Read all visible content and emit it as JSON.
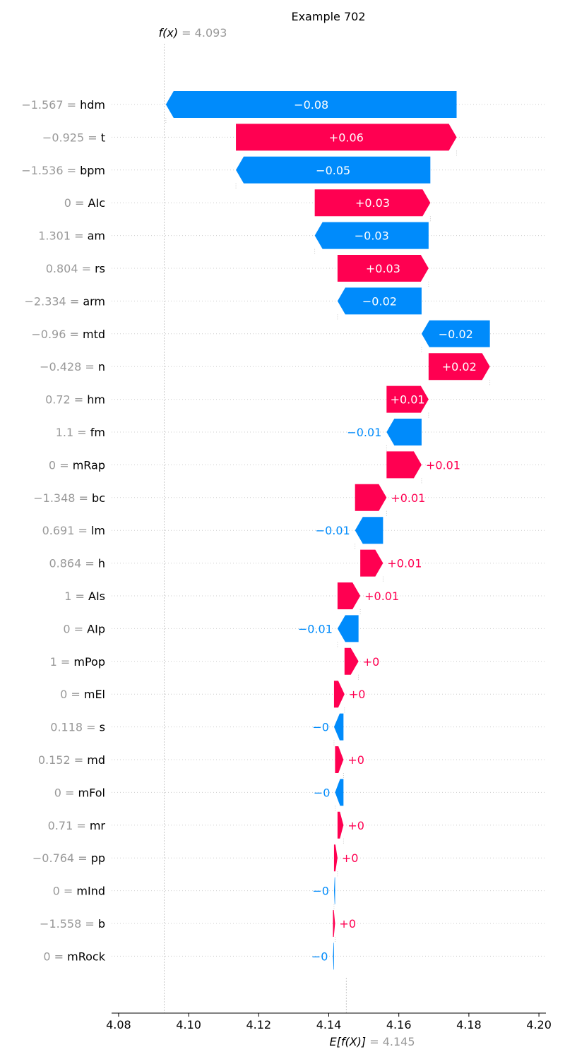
{
  "chart_data": {
    "type": "waterfall",
    "title": "Example 702",
    "fx_label": "f(x)",
    "fx_value": "4.093",
    "ex_label": "E[f(X)]",
    "ex_value": "4.145",
    "base_value": 4.145,
    "final_value": 4.093,
    "xlim": [
      4.078,
      4.202
    ],
    "x_ticks": [
      4.08,
      4.1,
      4.12,
      4.14,
      4.16,
      4.18,
      4.2
    ],
    "x_tick_labels": [
      "4.08",
      "4.10",
      "4.12",
      "4.14",
      "4.16",
      "4.18",
      "4.20"
    ],
    "colors": {
      "positive": "#ff0051",
      "negative": "#008bfb",
      "grid": "#cccccc",
      "value_text": "#999999"
    },
    "features": [
      {
        "name": "hdm",
        "value": "−1.567",
        "start": 4.1765,
        "end": 4.0935,
        "label": "−0.08"
      },
      {
        "name": "t",
        "value": "−0.925",
        "start": 4.1135,
        "end": 4.1765,
        "label": "+0.06"
      },
      {
        "name": "bpm",
        "value": "−1.536",
        "start": 4.169,
        "end": 4.1135,
        "label": "−0.05"
      },
      {
        "name": "AIc",
        "value": "0",
        "start": 4.136,
        "end": 4.169,
        "label": "+0.03"
      },
      {
        "name": "am",
        "value": "1.301",
        "start": 4.1685,
        "end": 4.136,
        "label": "−0.03"
      },
      {
        "name": "rs",
        "value": "0.804",
        "start": 4.1425,
        "end": 4.1685,
        "label": "+0.03"
      },
      {
        "name": "arm",
        "value": "−2.334",
        "start": 4.1665,
        "end": 4.1425,
        "label": "−0.02"
      },
      {
        "name": "mtd",
        "value": "−0.96",
        "start": 4.186,
        "end": 4.1665,
        "label": "−0.02"
      },
      {
        "name": "n",
        "value": "−0.428",
        "start": 4.1685,
        "end": 4.186,
        "label": "+0.02"
      },
      {
        "name": "hm",
        "value": "0.72",
        "start": 4.1565,
        "end": 4.1685,
        "label": "+0.01"
      },
      {
        "name": "fm",
        "value": "1.1",
        "start": 4.1665,
        "end": 4.1565,
        "label": "−0.01"
      },
      {
        "name": "mRap",
        "value": "0",
        "start": 4.1565,
        "end": 4.1665,
        "label": "+0.01"
      },
      {
        "name": "bc",
        "value": "−1.348",
        "start": 4.1475,
        "end": 4.1565,
        "label": "+0.01"
      },
      {
        "name": "lm",
        "value": "0.691",
        "start": 4.1555,
        "end": 4.1475,
        "label": "−0.01"
      },
      {
        "name": "h",
        "value": "0.864",
        "start": 4.149,
        "end": 4.1555,
        "label": "+0.01"
      },
      {
        "name": "AIs",
        "value": "1",
        "start": 4.1425,
        "end": 4.149,
        "label": "+0.01"
      },
      {
        "name": "AIp",
        "value": "0",
        "start": 4.1485,
        "end": 4.1425,
        "label": "−0.01"
      },
      {
        "name": "mPop",
        "value": "1",
        "start": 4.1445,
        "end": 4.1485,
        "label": "+0"
      },
      {
        "name": "mEl",
        "value": "0",
        "start": 4.1415,
        "end": 4.1445,
        "label": "+0"
      },
      {
        "name": "s",
        "value": "0.118",
        "start": 4.1442,
        "end": 4.1415,
        "label": "−0"
      },
      {
        "name": "md",
        "value": "0.152",
        "start": 4.1418,
        "end": 4.1442,
        "label": "+0"
      },
      {
        "name": "mFol",
        "value": "0",
        "start": 4.1442,
        "end": 4.1418,
        "label": "−0"
      },
      {
        "name": "mr",
        "value": "0.71",
        "start": 4.1425,
        "end": 4.1442,
        "label": "+0"
      },
      {
        "name": "pp",
        "value": "−0.764",
        "start": 4.1415,
        "end": 4.1425,
        "label": "+0"
      },
      {
        "name": "mInd",
        "value": "0",
        "start": 4.1418,
        "end": 4.1415,
        "label": "−0"
      },
      {
        "name": "b",
        "value": "−1.558",
        "start": 4.1412,
        "end": 4.1418,
        "label": "+0"
      },
      {
        "name": "mRock",
        "value": "0",
        "start": 4.1415,
        "end": 4.1412,
        "label": "−0"
      }
    ]
  }
}
